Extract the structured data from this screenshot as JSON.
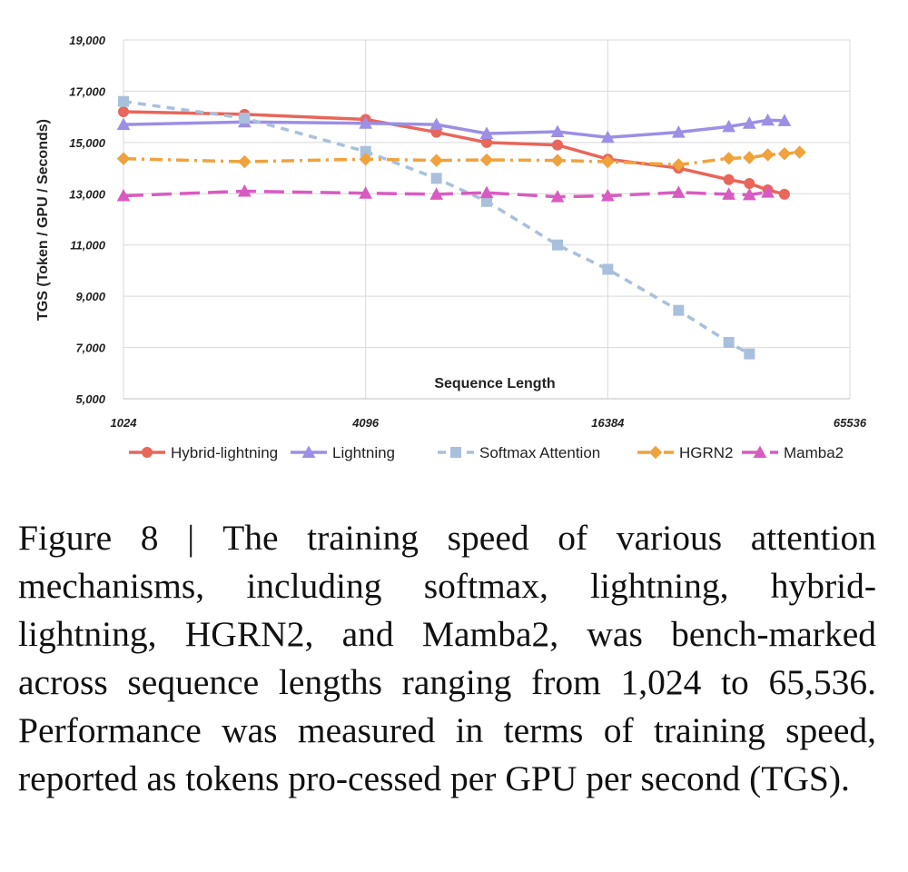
{
  "chart_data": {
    "type": "line",
    "title": "",
    "xlabel": "Sequence Length",
    "ylabel": "TGS (Token / GPU / Seconds)",
    "x_scale": "log2",
    "xlim": [
      1024,
      65536
    ],
    "ylim": [
      5000,
      19000
    ],
    "x_ticks": [
      1024,
      4096,
      16384,
      65536
    ],
    "x_tick_labels": [
      "1024",
      "4096",
      "16384",
      "65536"
    ],
    "y_ticks": [
      5000,
      7000,
      9000,
      11000,
      13000,
      15000,
      17000,
      19000
    ],
    "y_tick_labels": [
      "5,000",
      "7,000",
      "9,000",
      "11,000",
      "13,000",
      "15,000",
      "17,000",
      "19,000"
    ],
    "grid": "vertical and horizontal",
    "legend_position": "bottom",
    "series": [
      {
        "name": "Hybrid-lightning",
        "color": "#e8665a",
        "marker": "circle",
        "dash": "solid",
        "x": [
          1024,
          2048,
          4096,
          6144,
          8192,
          12288,
          16384,
          24576,
          32768,
          36864,
          40960,
          45056
        ],
        "y": [
          16200,
          16100,
          15900,
          15400,
          15000,
          14900,
          14350,
          14000,
          13550,
          13400,
          13150,
          12980
        ]
      },
      {
        "name": "Lightning",
        "color": "#9d8ee6",
        "marker": "triangle",
        "dash": "solid",
        "x": [
          1024,
          2048,
          4096,
          6144,
          8192,
          12288,
          16384,
          24576,
          32768,
          36864,
          40960,
          45056
        ],
        "y": [
          15700,
          15800,
          15750,
          15700,
          15350,
          15420,
          15200,
          15400,
          15620,
          15750,
          15870,
          15850
        ]
      },
      {
        "name": "Softmax Attention",
        "color": "#a9c0dc",
        "marker": "square",
        "dash": "dashed",
        "x": [
          1024,
          2048,
          4096,
          6144,
          8192,
          12288,
          16384,
          24576,
          32768,
          36864
        ],
        "y": [
          16600,
          15950,
          14650,
          13600,
          12700,
          11000,
          10050,
          8450,
          7200,
          6750
        ]
      },
      {
        "name": "HGRN2",
        "color": "#f0a23c",
        "marker": "diamond",
        "dash": "dashdot",
        "x": [
          1024,
          2048,
          4096,
          6144,
          8192,
          12288,
          16384,
          24576,
          32768,
          36864,
          40960,
          45056,
          49152
        ],
        "y": [
          14370,
          14250,
          14350,
          14300,
          14320,
          14300,
          14250,
          14130,
          14380,
          14410,
          14520,
          14560,
          14620
        ]
      },
      {
        "name": "Mamba2",
        "color": "#d95bc2",
        "marker": "triangle",
        "dash": "longdash",
        "x": [
          1024,
          2048,
          4096,
          6144,
          8192,
          12288,
          16384,
          24576,
          32768,
          36864,
          40960
        ],
        "y": [
          12920,
          13100,
          13020,
          12980,
          13040,
          12880,
          12920,
          13050,
          12980,
          12960,
          13060
        ]
      }
    ]
  },
  "caption": {
    "text": "Figure 8 | The training speed of various attention mechanisms, including softmax, lightning, hybrid-lightning, HGRN2, and Mamba2, was bench-marked across sequence lengths ranging from 1,024 to 65,536. Performance was measured in terms of training speed, reported as tokens pro-cessed per GPU per second (TGS)."
  }
}
